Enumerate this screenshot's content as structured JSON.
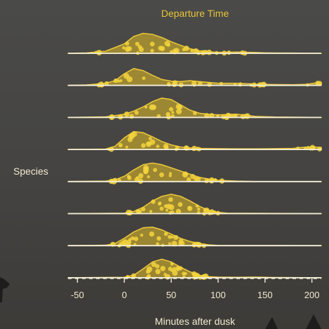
{
  "chart_data": {
    "type": "ridgeline",
    "title": "Departure Time",
    "xlabel": "Minutes after dusk",
    "ylabel": "Species",
    "xlim": [
      -60,
      210
    ],
    "xticks": [
      -50,
      0,
      50,
      100,
      150,
      200
    ],
    "colors": {
      "fill": "#b59a2e",
      "stroke": "#e8c53a",
      "dots": "#f3d43c",
      "baseline": "#f1ecd8"
    },
    "series": [
      {
        "curve": [
          [
            -60,
            0
          ],
          [
            -40,
            0.02
          ],
          [
            -20,
            0.1
          ],
          [
            0,
            0.45
          ],
          [
            10,
            0.8
          ],
          [
            20,
            0.95
          ],
          [
            30,
            0.9
          ],
          [
            40,
            0.75
          ],
          [
            50,
            0.55
          ],
          [
            60,
            0.38
          ],
          [
            70,
            0.22
          ],
          [
            80,
            0.12
          ],
          [
            90,
            0.07
          ],
          [
            100,
            0.05
          ],
          [
            110,
            0.05
          ],
          [
            120,
            0.06
          ],
          [
            130,
            0.05
          ],
          [
            140,
            0.04
          ],
          [
            150,
            0.02
          ],
          [
            160,
            0.015
          ],
          [
            180,
            0.01
          ],
          [
            210,
            0
          ]
        ]
      },
      {
        "curve": [
          [
            -60,
            0
          ],
          [
            -40,
            0.02
          ],
          [
            -20,
            0.1
          ],
          [
            -10,
            0.22
          ],
          [
            0,
            0.55
          ],
          [
            10,
            0.8
          ],
          [
            20,
            0.7
          ],
          [
            30,
            0.48
          ],
          [
            40,
            0.28
          ],
          [
            50,
            0.2
          ],
          [
            60,
            0.18
          ],
          [
            70,
            0.22
          ],
          [
            80,
            0.18
          ],
          [
            100,
            0.1
          ],
          [
            120,
            0.1
          ],
          [
            140,
            0.06
          ],
          [
            160,
            0.04
          ],
          [
            180,
            0.03
          ],
          [
            195,
            0.05
          ],
          [
            205,
            0.12
          ],
          [
            210,
            0.1
          ]
        ]
      },
      {
        "curve": [
          [
            -60,
            0
          ],
          [
            -20,
            0.03
          ],
          [
            0,
            0.15
          ],
          [
            10,
            0.3
          ],
          [
            20,
            0.5
          ],
          [
            30,
            0.75
          ],
          [
            40,
            0.92
          ],
          [
            50,
            0.85
          ],
          [
            60,
            0.6
          ],
          [
            70,
            0.35
          ],
          [
            80,
            0.2
          ],
          [
            90,
            0.15
          ],
          [
            100,
            0.12
          ],
          [
            110,
            0.14
          ],
          [
            120,
            0.15
          ],
          [
            130,
            0.1
          ],
          [
            140,
            0.05
          ],
          [
            160,
            0.02
          ],
          [
            210,
            0
          ]
        ]
      },
      {
        "curve": [
          [
            -60,
            0
          ],
          [
            -20,
            0.02
          ],
          [
            -10,
            0.15
          ],
          [
            0,
            0.55
          ],
          [
            10,
            0.85
          ],
          [
            20,
            0.8
          ],
          [
            30,
            0.6
          ],
          [
            40,
            0.38
          ],
          [
            50,
            0.22
          ],
          [
            60,
            0.12
          ],
          [
            70,
            0.08
          ],
          [
            80,
            0.05
          ],
          [
            100,
            0.04
          ],
          [
            120,
            0.03
          ],
          [
            140,
            0.03
          ],
          [
            160,
            0.04
          ],
          [
            180,
            0.05
          ],
          [
            190,
            0.1
          ],
          [
            200,
            0.12
          ],
          [
            210,
            0.1
          ]
        ]
      },
      {
        "curve": [
          [
            -60,
            0
          ],
          [
            -20,
            0.02
          ],
          [
            -10,
            0.08
          ],
          [
            0,
            0.25
          ],
          [
            10,
            0.55
          ],
          [
            20,
            0.8
          ],
          [
            30,
            0.88
          ],
          [
            40,
            0.8
          ],
          [
            50,
            0.65
          ],
          [
            60,
            0.5
          ],
          [
            70,
            0.35
          ],
          [
            80,
            0.2
          ],
          [
            90,
            0.12
          ],
          [
            100,
            0.06
          ],
          [
            120,
            0.02
          ],
          [
            140,
            0
          ],
          [
            210,
            0
          ]
        ]
      },
      {
        "curve": [
          [
            -60,
            0
          ],
          [
            0,
            0.02
          ],
          [
            10,
            0.1
          ],
          [
            20,
            0.3
          ],
          [
            30,
            0.6
          ],
          [
            40,
            0.82
          ],
          [
            50,
            0.92
          ],
          [
            60,
            0.82
          ],
          [
            70,
            0.6
          ],
          [
            80,
            0.35
          ],
          [
            90,
            0.15
          ],
          [
            100,
            0.06
          ],
          [
            110,
            0.02
          ],
          [
            210,
            0
          ]
        ]
      },
      {
        "curve": [
          [
            -60,
            0
          ],
          [
            -20,
            0.02
          ],
          [
            -10,
            0.1
          ],
          [
            0,
            0.35
          ],
          [
            10,
            0.65
          ],
          [
            20,
            0.85
          ],
          [
            30,
            0.88
          ],
          [
            40,
            0.75
          ],
          [
            50,
            0.55
          ],
          [
            60,
            0.35
          ],
          [
            70,
            0.2
          ],
          [
            80,
            0.1
          ],
          [
            90,
            0.04
          ],
          [
            100,
            0.01
          ],
          [
            210,
            0
          ]
        ]
      },
      {
        "curve": [
          [
            -60,
            0
          ],
          [
            0,
            0.02
          ],
          [
            10,
            0.12
          ],
          [
            20,
            0.42
          ],
          [
            30,
            0.75
          ],
          [
            40,
            0.88
          ],
          [
            50,
            0.75
          ],
          [
            60,
            0.5
          ],
          [
            70,
            0.28
          ],
          [
            80,
            0.12
          ],
          [
            90,
            0.05
          ],
          [
            100,
            0.03
          ],
          [
            120,
            0.02
          ],
          [
            140,
            0.03
          ],
          [
            150,
            0.02
          ],
          [
            160,
            0.01
          ],
          [
            210,
            0
          ]
        ]
      }
    ]
  }
}
